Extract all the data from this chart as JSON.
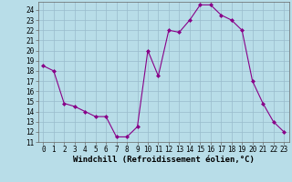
{
  "x": [
    0,
    1,
    2,
    3,
    4,
    5,
    6,
    7,
    8,
    9,
    10,
    11,
    12,
    13,
    14,
    15,
    16,
    17,
    18,
    19,
    20,
    21,
    22,
    23
  ],
  "y": [
    18.5,
    18.0,
    14.8,
    14.5,
    14.0,
    13.5,
    13.5,
    11.5,
    11.5,
    12.5,
    20.0,
    17.5,
    22.0,
    21.8,
    23.0,
    24.5,
    24.5,
    23.5,
    23.0,
    22.0,
    17.0,
    14.8,
    13.0,
    12.0
  ],
  "line_color": "#880088",
  "marker_color": "#880088",
  "bg_color": "#b8dde8",
  "grid_color": "#99bbcc",
  "xlabel": "Windchill (Refroidissement éolien,°C)",
  "xlim": [
    -0.5,
    23.5
  ],
  "ylim": [
    11,
    24.8
  ],
  "yticks": [
    11,
    12,
    13,
    14,
    15,
    16,
    17,
    18,
    19,
    20,
    21,
    22,
    23,
    24
  ],
  "xticks": [
    0,
    1,
    2,
    3,
    4,
    5,
    6,
    7,
    8,
    9,
    10,
    11,
    12,
    13,
    14,
    15,
    16,
    17,
    18,
    19,
    20,
    21,
    22,
    23
  ],
  "tick_fontsize": 5.5,
  "xlabel_fontsize": 6.5
}
